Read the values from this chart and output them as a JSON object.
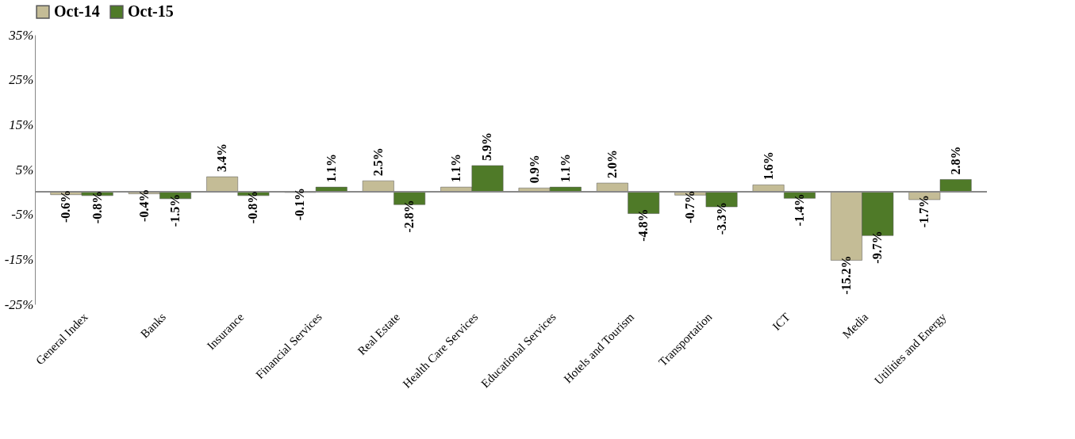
{
  "chart_data": {
    "type": "bar",
    "categories": [
      "General Index",
      "Banks",
      "Insurance",
      "Financial Services",
      "Real Estate",
      "Health Care Services",
      "Educational Services",
      "Hotels and Tourism",
      "Transportation",
      "ICT",
      "Media",
      "Utilities and Energy"
    ],
    "series": [
      {
        "name": "Oct-14",
        "color": "#c4bc96",
        "values": [
          -0.6,
          -0.4,
          3.4,
          -0.1,
          2.5,
          1.1,
          0.9,
          2.0,
          -0.7,
          1.6,
          -15.2,
          -1.7
        ],
        "value_labels": [
          "-0.6%",
          "-0.4%",
          "3.4%",
          "-0.1%",
          "2.5%",
          "1.1%",
          "0.9%",
          "2.0%",
          "-0.7%",
          "1.6%",
          "-15.2%",
          "-1.7%"
        ]
      },
      {
        "name": "Oct-15",
        "color": "#4f7a28",
        "values": [
          -0.8,
          -1.5,
          -0.8,
          1.1,
          -2.8,
          5.9,
          1.1,
          -4.8,
          -3.3,
          -1.4,
          -9.7,
          2.8
        ],
        "value_labels": [
          "-0.8%",
          "-1.5%",
          "-0.8%",
          "1.1%",
          "-2.8%",
          "5.9%",
          "1.1%",
          "-4.8%",
          "-3.3%",
          "-1.4%",
          "-9.7%",
          "2.8%"
        ]
      }
    ],
    "ylim": [
      -25,
      35
    ],
    "yticks": [
      {
        "value": -25,
        "label": "-25%"
      },
      {
        "value": -15,
        "label": "-15%"
      },
      {
        "value": -5,
        "label": "-5%"
      },
      {
        "value": 5,
        "label": "5%"
      },
      {
        "value": 15,
        "label": "15%"
      },
      {
        "value": 25,
        "label": "25%"
      },
      {
        "value": 35,
        "label": "35%"
      }
    ],
    "grid": false,
    "legend": "top"
  }
}
